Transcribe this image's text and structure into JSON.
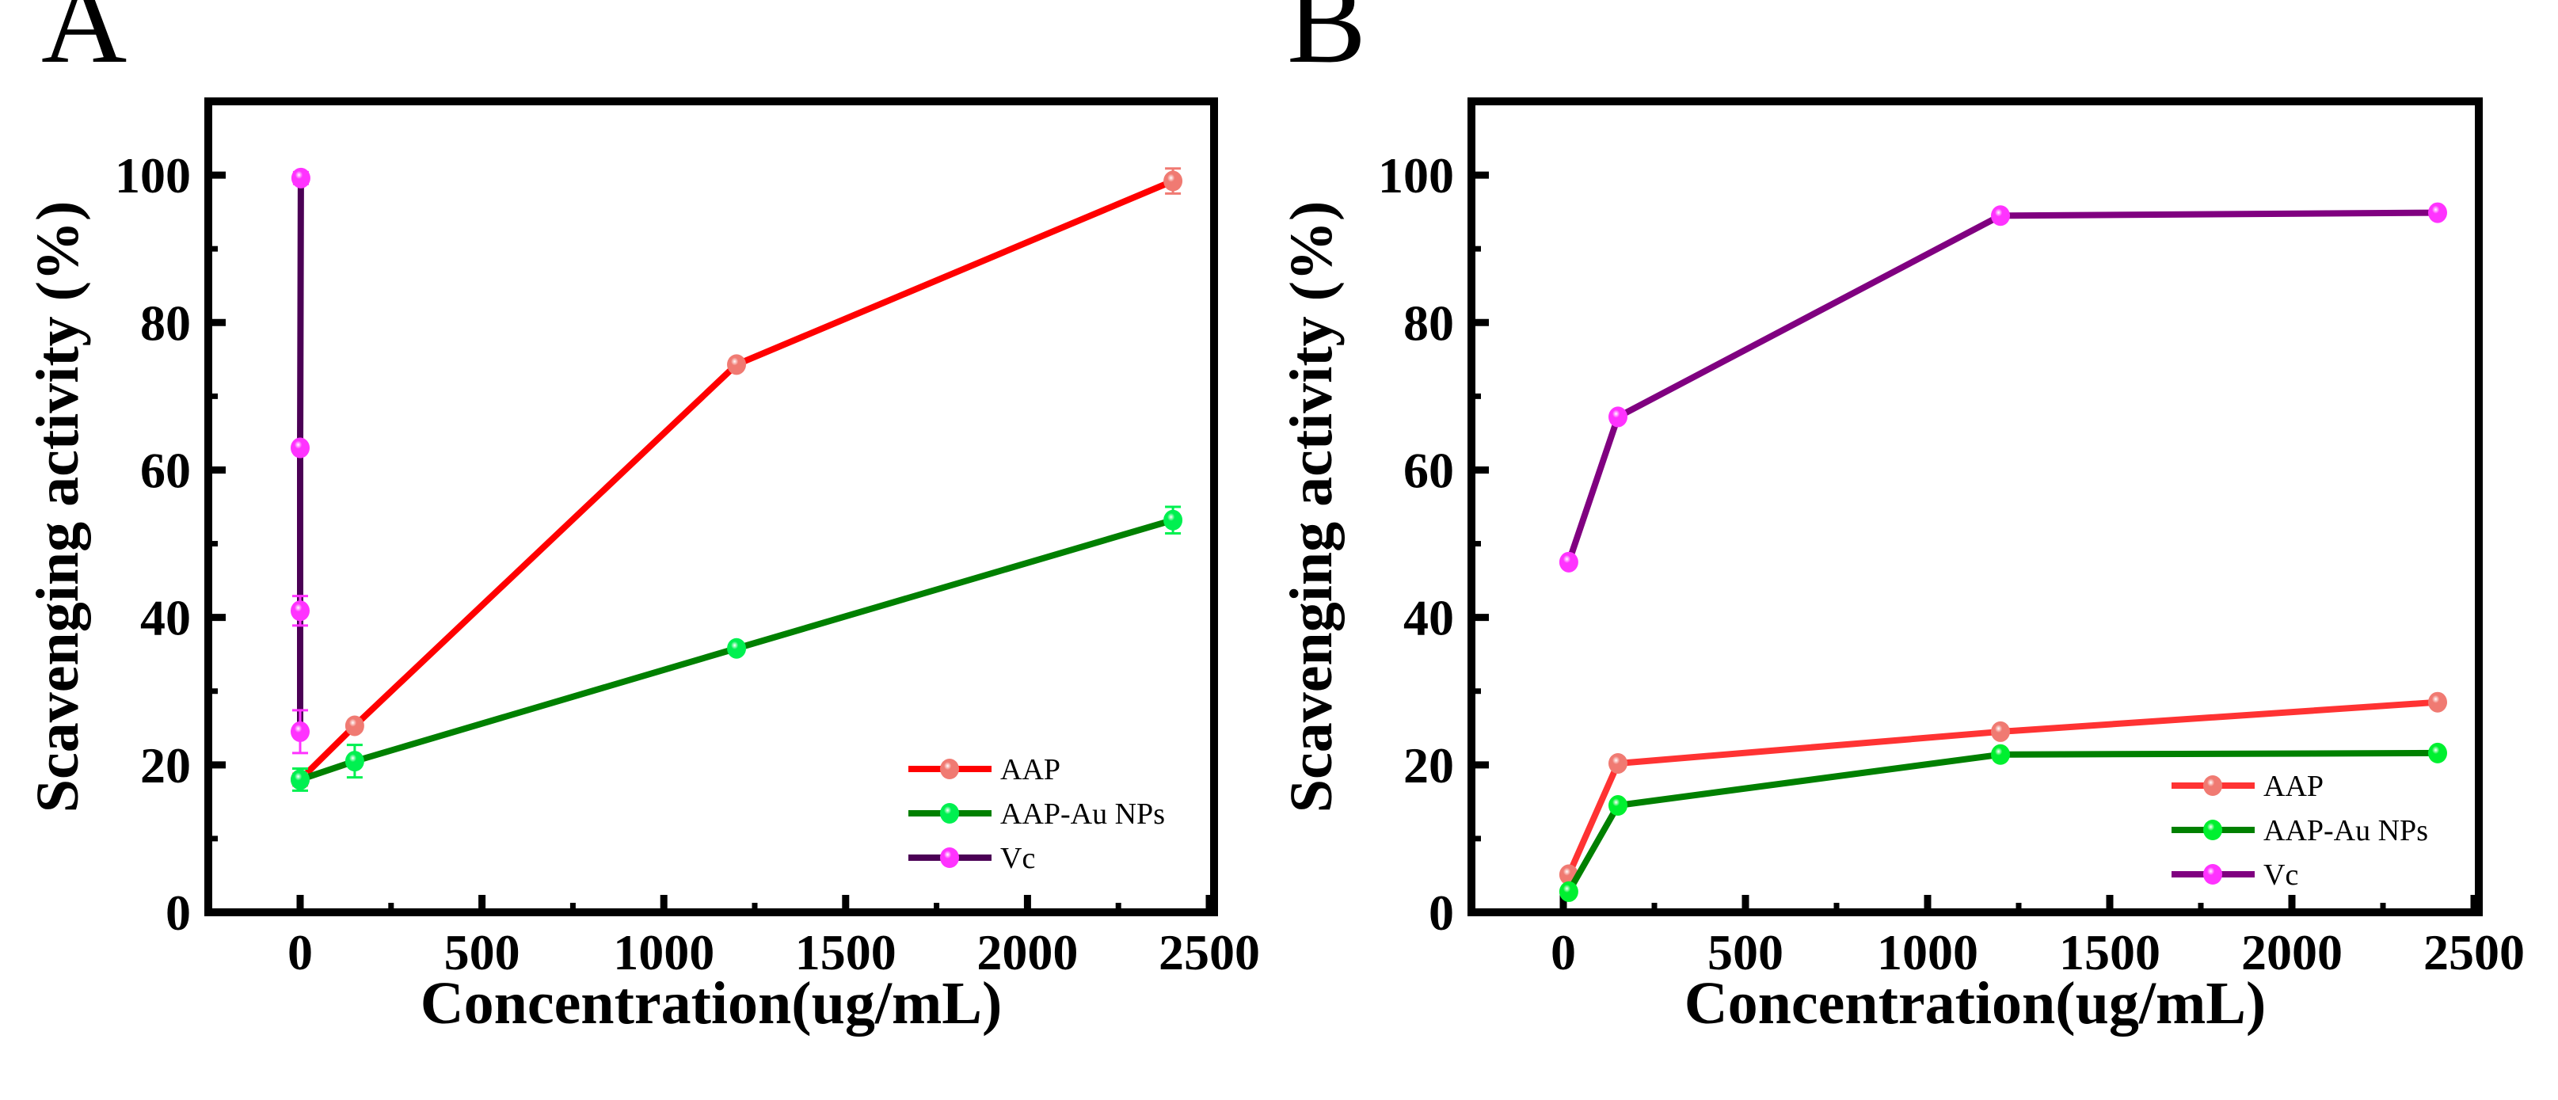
{
  "chart_data": [
    {
      "panel_label": "A",
      "type": "line",
      "xlabel": "Concentration(ug/mL)",
      "ylabel": "Scavenging activity (%)",
      "xlim": [
        -250,
        2500
      ],
      "ylim": [
        0,
        110
      ],
      "xticks": [
        0,
        500,
        1000,
        1500,
        2000,
        2500
      ],
      "yticks": [
        0,
        20,
        40,
        60,
        80,
        100
      ],
      "legend_position": "bottom-right",
      "series": [
        {
          "name": "AAP",
          "line_color": "#ff0000",
          "marker_color": "#f07a72",
          "x": [
            0,
            150,
            1200,
            2400
          ],
          "y": [
            18.0,
            25.3,
            74.3,
            99.2
          ],
          "err": [
            0.8,
            0.6,
            0.5,
            1.7
          ]
        },
        {
          "name": "AAP-Au NPs",
          "line_color": "#008000",
          "marker_color": "#00f050",
          "x": [
            0,
            150,
            1200,
            2400
          ],
          "y": [
            18.0,
            20.5,
            35.8,
            53.2
          ],
          "err": [
            1.5,
            2.2,
            0.6,
            1.8
          ]
        },
        {
          "name": "Vc",
          "line_color": "#4b0055",
          "marker_color": "#ff33ff",
          "x": [
            0,
            0,
            0,
            2
          ],
          "y": [
            24.5,
            40.9,
            63.0,
            99.6
          ],
          "err": [
            2.9,
            2.0,
            0.6,
            0.8
          ]
        }
      ]
    },
    {
      "panel_label": "B",
      "type": "line",
      "xlabel": "Concentration(ug/mL)",
      "ylabel": "Scavenging activity (%)",
      "xlim": [
        -250,
        2500
      ],
      "ylim": [
        0,
        110
      ],
      "xticks": [
        0,
        500,
        1000,
        1500,
        2000,
        2500
      ],
      "yticks": [
        0,
        20,
        40,
        60,
        80,
        100
      ],
      "legend_position": "bottom-right",
      "series": [
        {
          "name": "AAP",
          "line_color": "#ff3333",
          "marker_color": "#f07a72",
          "x": [
            15,
            150,
            1200,
            2400
          ],
          "y": [
            5.1,
            20.2,
            24.5,
            28.5
          ],
          "err": [
            0.5,
            0.4,
            0.4,
            0.5
          ]
        },
        {
          "name": "AAP-Au NPs",
          "line_color": "#008000",
          "marker_color": "#00f030",
          "x": [
            15,
            150,
            1200,
            2400
          ],
          "y": [
            2.8,
            14.5,
            21.4,
            21.6
          ],
          "err": [
            0.5,
            0.5,
            0.4,
            0.4
          ]
        },
        {
          "name": "Vc",
          "line_color": "#800080",
          "marker_color": "#ff33ff",
          "x": [
            15,
            150,
            1200,
            2400
          ],
          "y": [
            47.5,
            67.2,
            94.5,
            94.9
          ],
          "err": [
            0.5,
            0.5,
            0.4,
            0.4
          ]
        }
      ]
    }
  ]
}
